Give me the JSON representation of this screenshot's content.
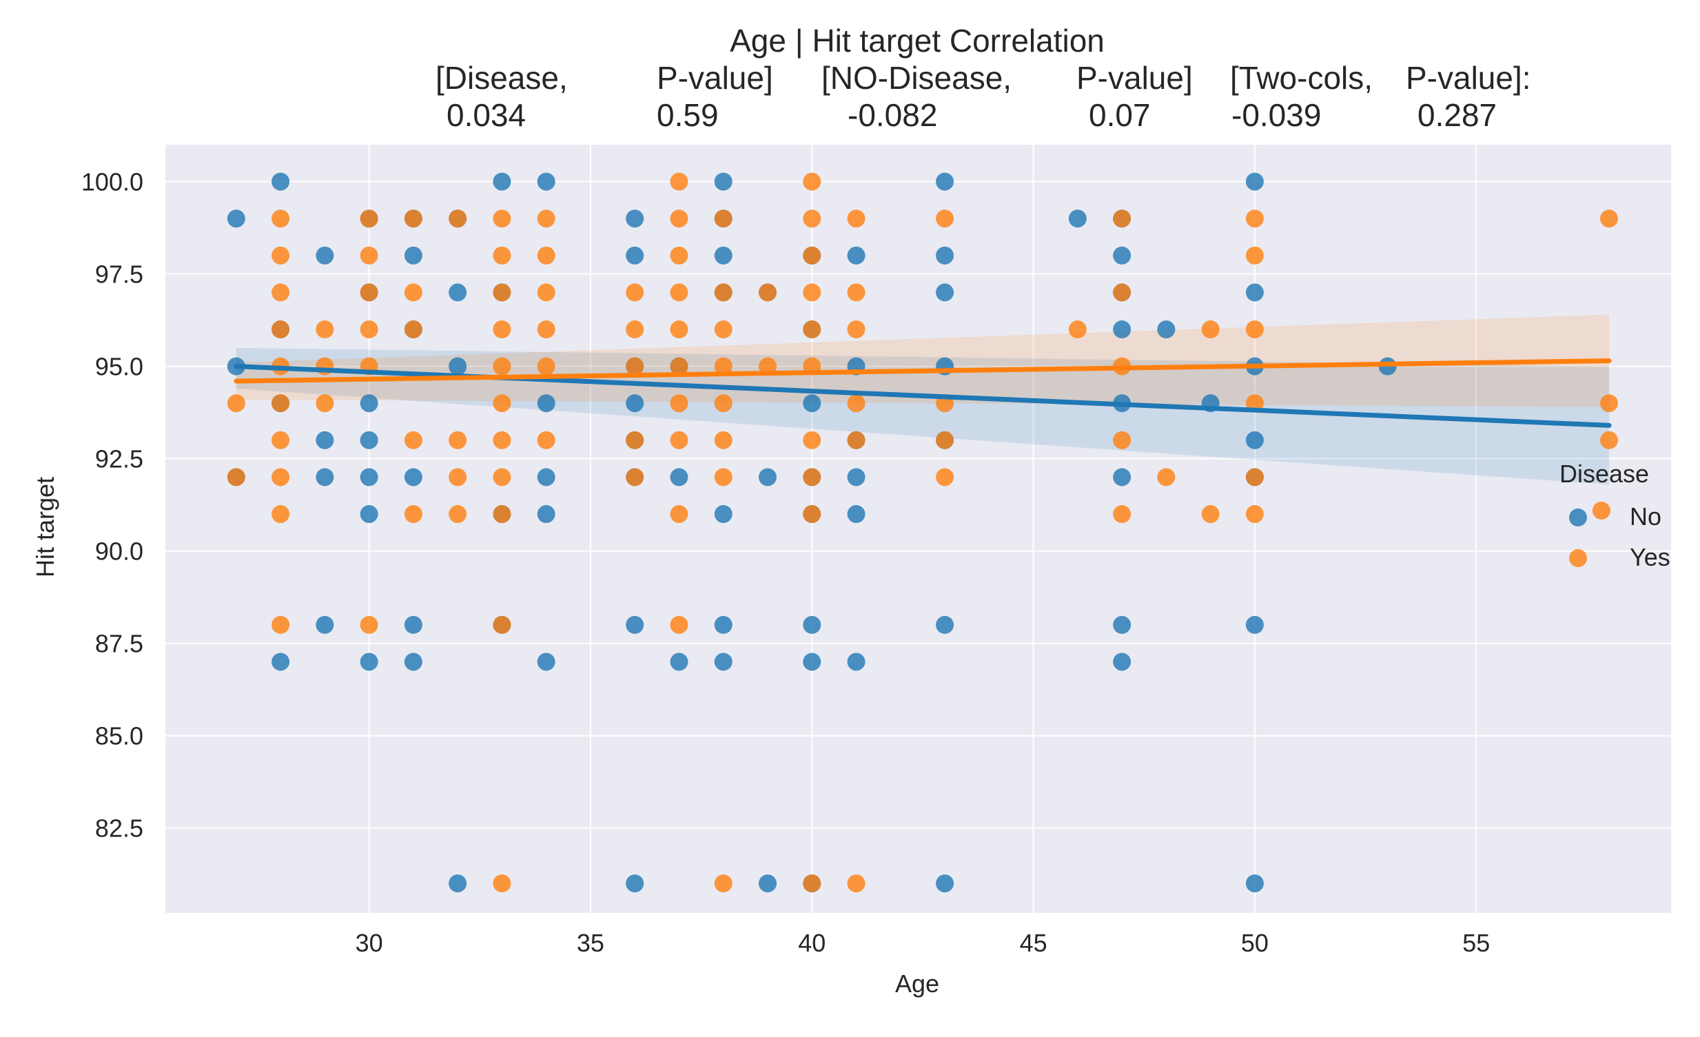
{
  "chart_data": {
    "type": "scatter",
    "title": {
      "line1": "Age | Hit target    Correlation",
      "line2": [
        "[Disease,",
        "P-value]",
        "[NO-Disease,",
        "P-value]",
        "[Two-cols,",
        "P-value]:"
      ],
      "line3": [
        "0.034",
        "0.59",
        "-0.082",
        "0.07",
        "-0.039",
        "0.287"
      ]
    },
    "xlabel": "Age",
    "ylabel": "Hit target",
    "xlim": [
      25.4,
      59.4
    ],
    "ylim": [
      80.2,
      101.0
    ],
    "xticks": [
      30,
      35,
      40,
      45,
      50,
      55
    ],
    "yticks": [
      82.5,
      85.0,
      87.5,
      90.0,
      92.5,
      95.0,
      97.5,
      100.0
    ],
    "grid": true,
    "legend": {
      "title": "Disease",
      "placement": "right",
      "entries": [
        "No",
        "Yes"
      ]
    },
    "colors": {
      "No": "#1f77b4",
      "Yes": "#ff7f0e",
      "background": "#eaeaf2",
      "grid": "#ffffff"
    },
    "series": [
      {
        "name": "No",
        "color": "#1f77b4",
        "points": [
          [
            27,
            99
          ],
          [
            27,
            95
          ],
          [
            27,
            92
          ],
          [
            28,
            100
          ],
          [
            28,
            96
          ],
          [
            28,
            94
          ],
          [
            28,
            87
          ],
          [
            29,
            98
          ],
          [
            29,
            93
          ],
          [
            29,
            92
          ],
          [
            29,
            88
          ],
          [
            30,
            99
          ],
          [
            30,
            97
          ],
          [
            30,
            94
          ],
          [
            30,
            93
          ],
          [
            30,
            92
          ],
          [
            30,
            91
          ],
          [
            30,
            87
          ],
          [
            31,
            99
          ],
          [
            31,
            98
          ],
          [
            31,
            96
          ],
          [
            31,
            92
          ],
          [
            31,
            88
          ],
          [
            31,
            87
          ],
          [
            32,
            99
          ],
          [
            32,
            97
          ],
          [
            32,
            95
          ],
          [
            32,
            81
          ],
          [
            33,
            100
          ],
          [
            33,
            97
          ],
          [
            33,
            91
          ],
          [
            33,
            88
          ],
          [
            34,
            100
          ],
          [
            34,
            94
          ],
          [
            34,
            92
          ],
          [
            34,
            91
          ],
          [
            34,
            87
          ],
          [
            36,
            99
          ],
          [
            36,
            98
          ],
          [
            36,
            95
          ],
          [
            36,
            94
          ],
          [
            36,
            93
          ],
          [
            36,
            92
          ],
          [
            36,
            88
          ],
          [
            36,
            81
          ],
          [
            37,
            95
          ],
          [
            37,
            92
          ],
          [
            37,
            87
          ],
          [
            38,
            100
          ],
          [
            38,
            99
          ],
          [
            38,
            98
          ],
          [
            38,
            97
          ],
          [
            38,
            91
          ],
          [
            38,
            88
          ],
          [
            38,
            87
          ],
          [
            39,
            97
          ],
          [
            39,
            92
          ],
          [
            39,
            81
          ],
          [
            40,
            98
          ],
          [
            40,
            96
          ],
          [
            40,
            94
          ],
          [
            40,
            92
          ],
          [
            40,
            91
          ],
          [
            40,
            88
          ],
          [
            40,
            87
          ],
          [
            40,
            81
          ],
          [
            41,
            98
          ],
          [
            41,
            95
          ],
          [
            41,
            93
          ],
          [
            41,
            92
          ],
          [
            41,
            91
          ],
          [
            41,
            87
          ],
          [
            43,
            100
          ],
          [
            43,
            98
          ],
          [
            43,
            97
          ],
          [
            43,
            95
          ],
          [
            43,
            93
          ],
          [
            43,
            88
          ],
          [
            43,
            81
          ],
          [
            46,
            99
          ],
          [
            47,
            99
          ],
          [
            47,
            98
          ],
          [
            47,
            97
          ],
          [
            47,
            96
          ],
          [
            47,
            94
          ],
          [
            47,
            92
          ],
          [
            47,
            88
          ],
          [
            47,
            87
          ],
          [
            48,
            96
          ],
          [
            49,
            94
          ],
          [
            50,
            100
          ],
          [
            50,
            97
          ],
          [
            50,
            95
          ],
          [
            50,
            93
          ],
          [
            50,
            92
          ],
          [
            50,
            88
          ],
          [
            50,
            81
          ],
          [
            53,
            95
          ]
        ],
        "fit": {
          "x": [
            27,
            58
          ],
          "y": [
            95.0,
            93.4
          ],
          "ci_low": [
            94.4,
            91.8
          ],
          "ci_high": [
            95.5,
            95.0
          ]
        }
      },
      {
        "name": "Yes",
        "color": "#ff7f0e",
        "points": [
          [
            27,
            94
          ],
          [
            27,
            92
          ],
          [
            28,
            99
          ],
          [
            28,
            98
          ],
          [
            28,
            97
          ],
          [
            28,
            96
          ],
          [
            28,
            95
          ],
          [
            28,
            94
          ],
          [
            28,
            93
          ],
          [
            28,
            92
          ],
          [
            28,
            91
          ],
          [
            28,
            88
          ],
          [
            29,
            96
          ],
          [
            29,
            95
          ],
          [
            29,
            94
          ],
          [
            30,
            99
          ],
          [
            30,
            98
          ],
          [
            30,
            97
          ],
          [
            30,
            96
          ],
          [
            30,
            95
          ],
          [
            30,
            88
          ],
          [
            31,
            99
          ],
          [
            31,
            97
          ],
          [
            31,
            96
          ],
          [
            31,
            93
          ],
          [
            31,
            91
          ],
          [
            32,
            99
          ],
          [
            32,
            93
          ],
          [
            32,
            92
          ],
          [
            32,
            91
          ],
          [
            33,
            99
          ],
          [
            33,
            98
          ],
          [
            33,
            97
          ],
          [
            33,
            96
          ],
          [
            33,
            95
          ],
          [
            33,
            94
          ],
          [
            33,
            93
          ],
          [
            33,
            92
          ],
          [
            33,
            91
          ],
          [
            33,
            88
          ],
          [
            33,
            81
          ],
          [
            34,
            99
          ],
          [
            34,
            98
          ],
          [
            34,
            97
          ],
          [
            34,
            96
          ],
          [
            34,
            95
          ],
          [
            34,
            93
          ],
          [
            36,
            97
          ],
          [
            36,
            96
          ],
          [
            36,
            95
          ],
          [
            36,
            93
          ],
          [
            36,
            92
          ],
          [
            37,
            100
          ],
          [
            37,
            99
          ],
          [
            37,
            98
          ],
          [
            37,
            97
          ],
          [
            37,
            96
          ],
          [
            37,
            95
          ],
          [
            37,
            94
          ],
          [
            37,
            93
          ],
          [
            37,
            91
          ],
          [
            37,
            88
          ],
          [
            38,
            99
          ],
          [
            38,
            97
          ],
          [
            38,
            96
          ],
          [
            38,
            95
          ],
          [
            38,
            94
          ],
          [
            38,
            93
          ],
          [
            38,
            92
          ],
          [
            38,
            81
          ],
          [
            39,
            97
          ],
          [
            39,
            95
          ],
          [
            40,
            100
          ],
          [
            40,
            99
          ],
          [
            40,
            98
          ],
          [
            40,
            97
          ],
          [
            40,
            96
          ],
          [
            40,
            95
          ],
          [
            40,
            93
          ],
          [
            40,
            92
          ],
          [
            40,
            91
          ],
          [
            40,
            81
          ],
          [
            41,
            99
          ],
          [
            41,
            97
          ],
          [
            41,
            96
          ],
          [
            41,
            94
          ],
          [
            41,
            93
          ],
          [
            41,
            81
          ],
          [
            43,
            99
          ],
          [
            43,
            94
          ],
          [
            43,
            93
          ],
          [
            43,
            92
          ],
          [
            46,
            96
          ],
          [
            47,
            99
          ],
          [
            47,
            97
          ],
          [
            47,
            95
          ],
          [
            47,
            93
          ],
          [
            47,
            91
          ],
          [
            48,
            92
          ],
          [
            49,
            96
          ],
          [
            49,
            91
          ],
          [
            50,
            99
          ],
          [
            50,
            98
          ],
          [
            50,
            96
          ],
          [
            50,
            94
          ],
          [
            50,
            92
          ],
          [
            50,
            91
          ],
          [
            58,
            99
          ],
          [
            58,
            94
          ],
          [
            58,
            93
          ]
        ],
        "fit": {
          "x": [
            27,
            58
          ],
          "y": [
            94.6,
            95.15
          ],
          "ci_low": [
            94.1,
            93.9
          ],
          "ci_high": [
            95.1,
            96.4
          ]
        }
      }
    ]
  }
}
